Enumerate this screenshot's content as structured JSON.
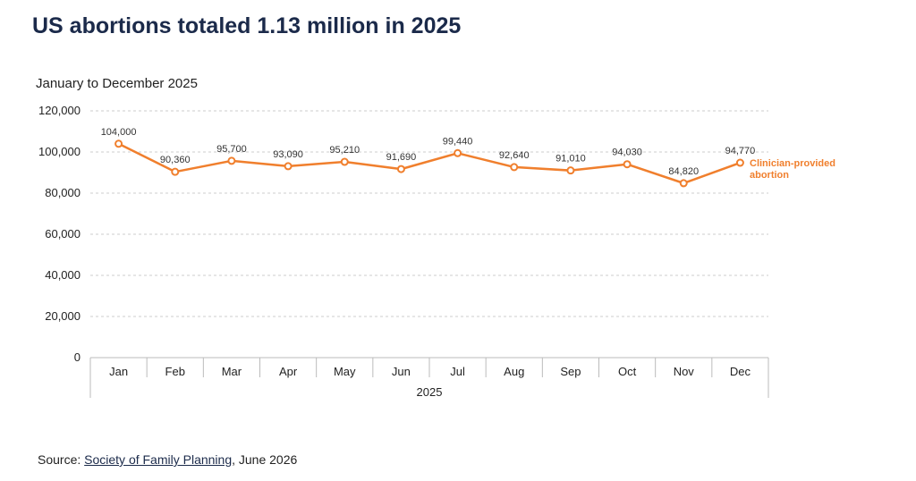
{
  "title": "US abortions totaled 1.13 million in 2025",
  "subtitle": "January to December 2025",
  "source": {
    "prefix": "Source: ",
    "link_text": "Society of Family Planning",
    "suffix": ", June 2026"
  },
  "colors": {
    "series": "#f07f2d",
    "grid": "#cccccc",
    "axis": "#bbbbbb"
  },
  "chart_data": {
    "type": "line",
    "categories": [
      "Jan",
      "Feb",
      "Mar",
      "Apr",
      "May",
      "Jun",
      "Jul",
      "Aug",
      "Sep",
      "Oct",
      "Nov",
      "Dec"
    ],
    "x_group_label": "2025",
    "series": [
      {
        "name": [
          "Clinician-provided",
          "abortion"
        ],
        "values": [
          104000,
          90360,
          95700,
          93090,
          95210,
          91690,
          99440,
          92640,
          91010,
          94030,
          84820,
          94770
        ],
        "value_labels": [
          "104,000",
          "90,360",
          "95,700",
          "93,090",
          "95,210",
          "91,690",
          "99,440",
          "92,640",
          "91,010",
          "94,030",
          "84,820",
          "94,770"
        ]
      }
    ],
    "yticks": [
      0,
      20000,
      40000,
      60000,
      80000,
      100000,
      120000
    ],
    "ytick_labels": [
      "0",
      "20,000",
      "40,000",
      "60,000",
      "80,000",
      "100,000",
      "120,000"
    ],
    "ylim": [
      0,
      120000
    ],
    "grid": true,
    "legend": "inline-right"
  }
}
